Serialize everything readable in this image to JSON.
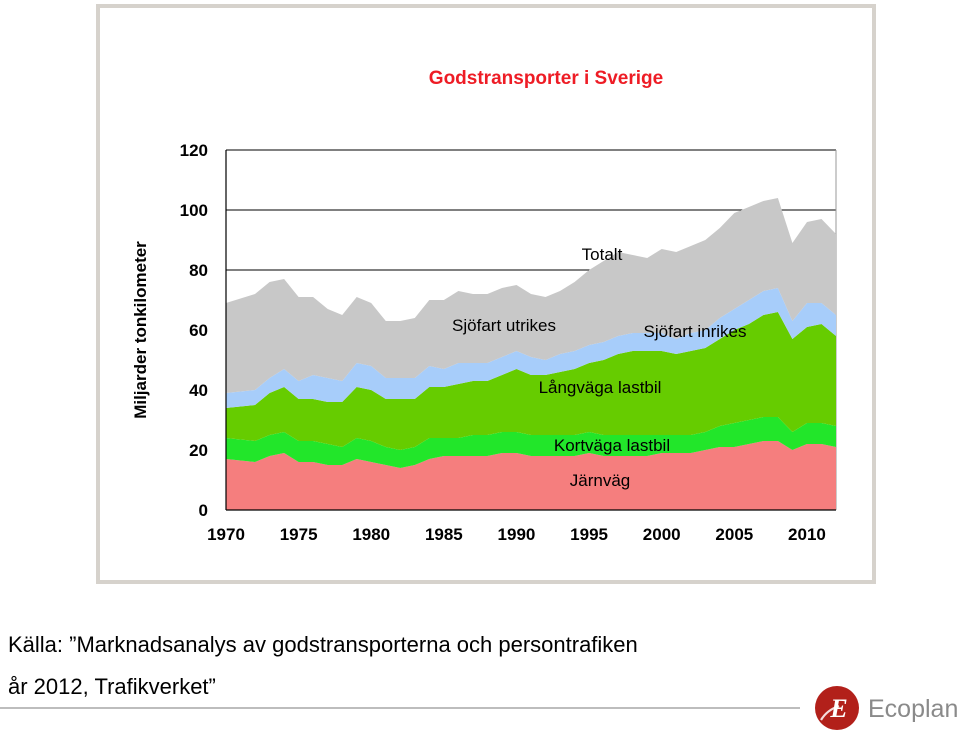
{
  "chart_data": {
    "type": "area",
    "stacked": true,
    "title": "Godstransporter i Sverige",
    "ylabel": "Miljarder tonkilometer",
    "xlabel": "",
    "xlim": [
      1970,
      2012
    ],
    "ylim": [
      0,
      120
    ],
    "xticks": [
      1970,
      1975,
      1980,
      1985,
      1990,
      1995,
      2000,
      2005,
      2010
    ],
    "yticks": [
      0,
      20,
      40,
      60,
      80,
      100,
      120
    ],
    "gridlines": [
      80,
      100,
      120
    ],
    "x": [
      1970,
      1972,
      1973,
      1974,
      1975,
      1976,
      1977,
      1978,
      1979,
      1980,
      1981,
      1982,
      1983,
      1984,
      1985,
      1986,
      1987,
      1988,
      1989,
      1990,
      1991,
      1992,
      1993,
      1994,
      1995,
      1996,
      1997,
      1998,
      1999,
      2000,
      2001,
      2002,
      2003,
      2004,
      2005,
      2006,
      2007,
      2008,
      2009,
      2010,
      2011,
      2012
    ],
    "series": [
      {
        "name": "Järnväg",
        "color": "#f57e7e",
        "values": [
          17,
          16,
          18,
          19,
          16,
          16,
          15,
          15,
          17,
          16,
          15,
          14,
          15,
          17,
          18,
          18,
          18,
          18,
          19,
          19,
          18,
          18,
          18,
          18,
          19,
          18,
          18,
          18,
          18,
          19,
          19,
          19,
          20,
          21,
          21,
          22,
          23,
          23,
          20,
          22,
          22,
          21
        ]
      },
      {
        "name": "Kortväga lastbil",
        "color": "#22e62a",
        "values": [
          7,
          7,
          7,
          7,
          7,
          7,
          7,
          6,
          7,
          7,
          6,
          6,
          6,
          7,
          6,
          6,
          7,
          7,
          7,
          7,
          7,
          7,
          7,
          7,
          7,
          7,
          7,
          7,
          7,
          6,
          6,
          6,
          6,
          7,
          8,
          8,
          8,
          8,
          6,
          7,
          7,
          7
        ]
      },
      {
        "name": "Långväga lastbil",
        "color": "#66cc00",
        "values": [
          10,
          12,
          14,
          15,
          14,
          14,
          14,
          15,
          17,
          17,
          16,
          17,
          16,
          17,
          17,
          18,
          18,
          18,
          19,
          21,
          20,
          20,
          21,
          22,
          23,
          25,
          27,
          28,
          28,
          28,
          27,
          28,
          28,
          29,
          31,
          32,
          34,
          35,
          31,
          32,
          33,
          30
        ]
      },
      {
        "name": "Sjöfart inrikes",
        "color": "#a7cdfa",
        "values": [
          5,
          5,
          5,
          6,
          6,
          8,
          8,
          7,
          8,
          8,
          7,
          7,
          7,
          7,
          6,
          7,
          6,
          6,
          6,
          6,
          6,
          5,
          6,
          6,
          6,
          6,
          6,
          6,
          6,
          6,
          5,
          6,
          6,
          7,
          7,
          8,
          8,
          8,
          6,
          8,
          7,
          7
        ]
      },
      {
        "name": "Sjöfart utrikes",
        "color": "#c8c8c8",
        "values": [
          30,
          32,
          32,
          30,
          28,
          26,
          23,
          22,
          22,
          21,
          19,
          19,
          20,
          22,
          23,
          24,
          23,
          23,
          23,
          22,
          21,
          21,
          21,
          23,
          25,
          27,
          28,
          26,
          25,
          28,
          29,
          29,
          30,
          30,
          32,
          31,
          30,
          30,
          26,
          27,
          28,
          27
        ]
      }
    ],
    "totals_label": "Totalt",
    "legend": "inline labels on areas"
  },
  "source": {
    "line1": "Källa: ”Marknadsanalys av godstransporterna och persontrafiken",
    "line2": "år 2012, Trafikverket”"
  },
  "logo": {
    "letter": "E",
    "name": "Ecoplan",
    "color": "#b2201a"
  }
}
